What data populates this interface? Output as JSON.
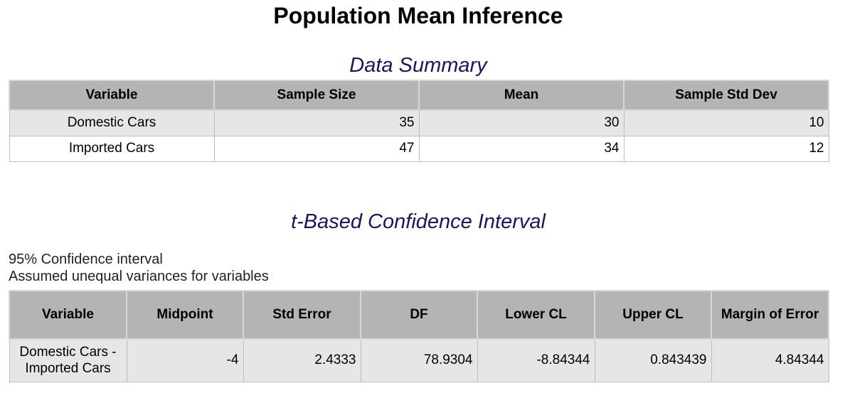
{
  "title": "Population Mean Inference",
  "data_summary": {
    "heading": "Data Summary",
    "columns": [
      "Variable",
      "Sample Size",
      "Mean",
      "Sample Std Dev"
    ],
    "rows": [
      {
        "variable": "Domestic Cars",
        "sample_size": "35",
        "mean": "30",
        "std_dev": "10"
      },
      {
        "variable": "Imported Cars",
        "sample_size": "47",
        "mean": "34",
        "std_dev": "12"
      }
    ]
  },
  "ci": {
    "heading": "t-Based Confidence Interval",
    "note1": "95% Confidence interval",
    "note2": "Assumed unequal variances for variables",
    "columns": [
      "Variable",
      "Midpoint",
      "Std Error",
      "DF",
      "Lower CL",
      "Upper CL",
      "Margin of Error"
    ],
    "rows": [
      {
        "variable": "Domestic Cars - Imported Cars",
        "midpoint": "-4",
        "std_error": "2.4333",
        "df": "78.9304",
        "lower_cl": "-8.84344",
        "upper_cl": "0.843439",
        "margin": "4.84344"
      }
    ]
  }
}
